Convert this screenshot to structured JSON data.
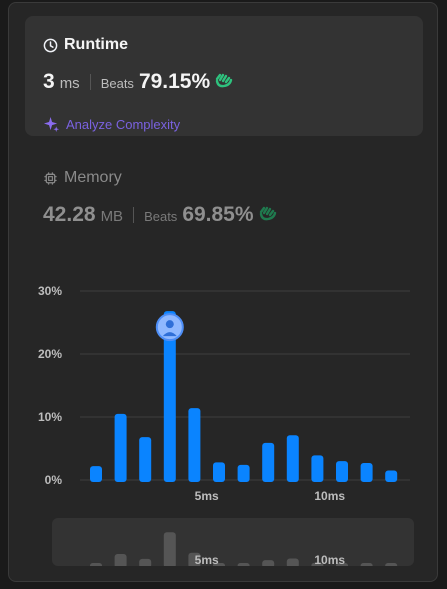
{
  "runtime": {
    "title": "Runtime",
    "value": "3",
    "unit": "ms",
    "beats_label": "Beats",
    "beats_value": "79.15%",
    "analyze_label": "Analyze Complexity"
  },
  "memory": {
    "title": "Memory",
    "value": "42.28",
    "unit": "MB",
    "beats_label": "Beats",
    "beats_value": "69.85%"
  },
  "colors": {
    "bar": "#0a84ff",
    "grid": "#3e3e3e",
    "accent": "#7a62e0",
    "clap": "#2ec27e"
  },
  "chart_data": {
    "type": "bar",
    "title": "",
    "xlabel": "",
    "ylabel": "",
    "x": [
      1,
      2,
      3,
      4,
      5,
      6,
      7,
      8,
      9,
      10,
      11,
      12,
      13
    ],
    "values": [
      2.2,
      10.5,
      6.8,
      26.8,
      11.4,
      2.8,
      2.4,
      5.9,
      7.1,
      3.9,
      3.0,
      2.7,
      1.5
    ],
    "y_ticks": [
      "0%",
      "10%",
      "20%",
      "30%"
    ],
    "ylim": [
      0,
      30
    ],
    "x_tick_labels": [
      {
        "at": 5,
        "label": "5ms"
      },
      {
        "at": 10,
        "label": "10ms"
      }
    ],
    "highlight_x": 4,
    "grid": true
  }
}
